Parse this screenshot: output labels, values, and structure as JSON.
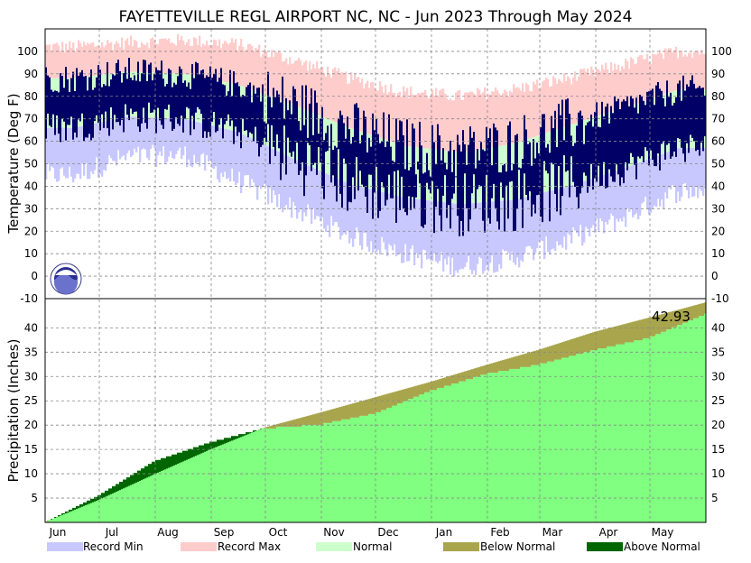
{
  "chart_data": {
    "type": "area",
    "title": "FAYETTEVILLE REGL AIRPORT NC, NC - Jun 2023 Through May 2024",
    "months": [
      "Jun",
      "Jul",
      "Aug",
      "Sep",
      "Oct",
      "Nov",
      "Dec",
      "Jan",
      "Feb",
      "Mar",
      "Apr",
      "May"
    ],
    "panels": [
      {
        "name": "temperature",
        "ylabel": "Temperature (Deg F)",
        "ylim": [
          -10,
          110
        ],
        "yticks": [
          -10,
          0,
          10,
          20,
          30,
          40,
          50,
          60,
          70,
          80,
          90,
          100
        ],
        "grid": true,
        "series": [
          "Record Min",
          "Record Max",
          "Normal",
          "Observed"
        ],
        "monthly_profile": {
          "record_max_f": [
            102,
            104,
            105,
            103,
            96,
            88,
            82,
            80,
            83,
            88,
            94,
            100
          ],
          "normal_high_f": [
            88,
            91,
            90,
            85,
            76,
            66,
            58,
            55,
            59,
            67,
            75,
            83
          ],
          "normal_low_f": [
            66,
            71,
            70,
            64,
            52,
            41,
            35,
            32,
            34,
            40,
            48,
            57
          ],
          "record_min_f": [
            45,
            53,
            54,
            42,
            30,
            18,
            10,
            4,
            8,
            16,
            26,
            38
          ]
        },
        "logo": "noaa-logo"
      },
      {
        "name": "precipitation",
        "ylabel": "Precipitation (Inches)",
        "ylim": [
          0,
          46
        ],
        "yticks": [
          5,
          10,
          15,
          20,
          25,
          30,
          35,
          40
        ],
        "grid": true,
        "series": [
          "Observed Accumulated",
          "Normal Accumulated"
        ],
        "total_label": "42.93",
        "observed_total_in": 42.93,
        "normal_total_in": 45.2,
        "monthly_cumulative_observed_in": [
          0.0,
          5.6,
          12.7,
          16.6,
          19.5,
          20.3,
          22.5,
          27.2,
          30.7,
          32.6,
          35.6,
          38.1,
          42.93
        ],
        "monthly_cumulative_normal_in": [
          0.0,
          4.6,
          9.9,
          15.0,
          19.5,
          22.6,
          25.7,
          28.9,
          32.4,
          35.5,
          39.2,
          42.1,
          45.2
        ]
      }
    ],
    "legend": [
      {
        "label": "Record Min",
        "color": "#c8c8ff"
      },
      {
        "label": "Record Max",
        "color": "#ffcccc"
      },
      {
        "label": "Normal",
        "color": "#ccffcc"
      },
      {
        "label": "Below Normal",
        "color": "#a9a54d"
      },
      {
        "label": "Above Normal",
        "color": "#006600"
      }
    ],
    "colors": {
      "observed_temp": "#000066",
      "precip_observed": "#80ff80",
      "below_normal": "#a9a54d",
      "above_normal": "#006600"
    }
  }
}
